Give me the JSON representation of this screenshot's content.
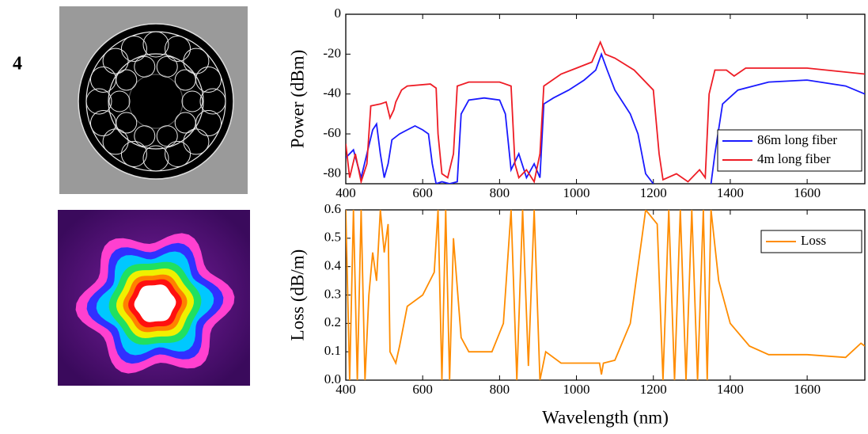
{
  "panel_label": "4",
  "chart_data": [
    {
      "type": "line",
      "y_label": "Power (dBm)",
      "xlim": [
        400,
        1750
      ],
      "xticks": [
        400,
        600,
        800,
        1000,
        1200,
        1400,
        1600
      ],
      "ylim": [
        -85,
        0
      ],
      "yticks": [
        0,
        -20,
        -40,
        -60,
        -80
      ],
      "legend": "lower right",
      "series": [
        {
          "name": "86m long fiber",
          "color": "#1a1aff",
          "x": [
            400,
            420,
            440,
            455,
            470,
            480,
            490,
            500,
            510,
            520,
            540,
            560,
            580,
            600,
            615,
            625,
            635,
            650,
            670,
            690,
            700,
            720,
            760,
            800,
            815,
            830,
            850,
            870,
            890,
            905,
            915,
            940,
            980,
            1020,
            1050,
            1065,
            1080,
            1100,
            1140,
            1160,
            1180,
            1200,
            1220,
            1340,
            1350,
            1360,
            1380,
            1420,
            1500,
            1600,
            1700,
            1750
          ],
          "values": [
            -72,
            -68,
            -82,
            -70,
            -58,
            -55,
            -70,
            -82,
            -75,
            -63,
            -60,
            -58,
            -56,
            -58,
            -60,
            -75,
            -85,
            -84,
            -85,
            -84,
            -50,
            -43,
            -42,
            -43,
            -50,
            -78,
            -70,
            -82,
            -75,
            -82,
            -45,
            -42,
            -38,
            -33,
            -28,
            -20,
            -28,
            -38,
            -50,
            -60,
            -80,
            -85,
            null,
            null,
            -85,
            -70,
            -45,
            -38,
            -34,
            -33,
            -36,
            -40
          ]
        },
        {
          "name": "4m long fiber",
          "color": "#ee1c25",
          "x": [
            400,
            410,
            425,
            440,
            455,
            465,
            490,
            505,
            515,
            525,
            530,
            545,
            560,
            620,
            635,
            640,
            650,
            665,
            680,
            690,
            720,
            800,
            830,
            840,
            850,
            870,
            890,
            905,
            915,
            960,
            1000,
            1040,
            1062,
            1075,
            1100,
            1150,
            1200,
            1215,
            1225,
            1260,
            1290,
            1320,
            1335,
            1345,
            1360,
            1390,
            1410,
            1440,
            1600,
            1750
          ],
          "values": [
            -65,
            -82,
            -70,
            -84,
            -75,
            -46,
            -45,
            -44,
            -52,
            -48,
            -44,
            -38,
            -36,
            -35,
            -37,
            -60,
            -80,
            -82,
            -70,
            -36,
            -34,
            -34,
            -36,
            -75,
            -82,
            -78,
            -84,
            -70,
            -36,
            -30,
            -27,
            -24,
            -14,
            -20,
            -22,
            -28,
            -38,
            -70,
            -83,
            -80,
            -84,
            -78,
            -82,
            -40,
            -28,
            -28,
            -31,
            -27,
            -27,
            -30
          ]
        }
      ]
    },
    {
      "type": "line",
      "x_label": "Wavelength (nm)",
      "y_label": "Loss (dB/m)",
      "xlim": [
        400,
        1750
      ],
      "xticks": [
        400,
        600,
        800,
        1000,
        1200,
        1400,
        1600
      ],
      "ylim": [
        0,
        0.6
      ],
      "yticks": [
        {
          "value": 0,
          "label": "0.0"
        },
        0.1,
        0.2,
        0.3,
        0.4,
        0.5,
        0.6
      ],
      "legend": "upper right",
      "series": [
        {
          "name": "Loss",
          "color": "#ff8c00",
          "x": [
            400,
            410,
            420,
            430,
            440,
            450,
            460,
            470,
            480,
            490,
            500,
            510,
            515,
            530,
            540,
            560,
            600,
            630,
            640,
            650,
            660,
            670,
            680,
            700,
            720,
            780,
            810,
            830,
            845,
            860,
            875,
            890,
            905,
            920,
            960,
            1060,
            1065,
            1070,
            1100,
            1140,
            1170,
            1180,
            1210,
            1225,
            1240,
            1255,
            1270,
            1285,
            1300,
            1315,
            1330,
            1340,
            1350,
            1370,
            1400,
            1450,
            1500,
            1600,
            1700,
            1740,
            1750
          ],
          "values": [
            0.6,
            0,
            0.6,
            0,
            0.6,
            0,
            0.3,
            0.45,
            0.35,
            0.6,
            0.45,
            0.55,
            0.1,
            0.06,
            0.12,
            0.26,
            0.3,
            0.38,
            0.6,
            0,
            0.6,
            0,
            0.5,
            0.15,
            0.1,
            0.1,
            0.2,
            0.6,
            0,
            0.6,
            0.05,
            0.6,
            0,
            0.1,
            0.06,
            0.06,
            0.02,
            0.06,
            0.07,
            0.2,
            0.5,
            0.6,
            0.55,
            0,
            0.6,
            0,
            0.6,
            0,
            0.6,
            0,
            0.6,
            0,
            0.6,
            0.35,
            0.2,
            0.12,
            0.09,
            0.09,
            0.08,
            0.13,
            0.12
          ]
        }
      ]
    }
  ]
}
